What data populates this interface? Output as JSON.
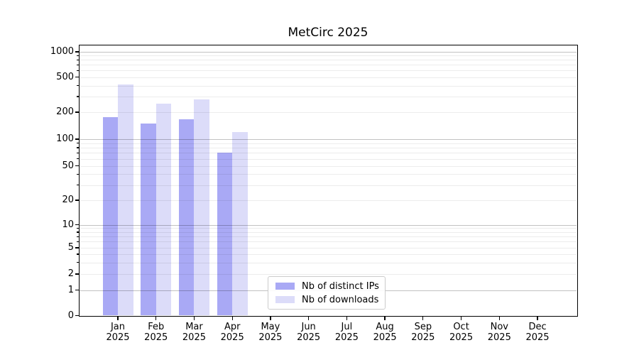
{
  "title": "MetCirc 2025",
  "chart_data": {
    "type": "bar",
    "title": "MetCirc 2025",
    "x_tick_months": [
      "Jan",
      "Feb",
      "Mar",
      "Apr",
      "May",
      "Jun",
      "Jul",
      "Aug",
      "Sep",
      "Oct",
      "Nov",
      "Dec"
    ],
    "x_tick_year": "2025",
    "y_axis": {
      "scale": "symlog",
      "tick_values": [
        0,
        1,
        2,
        5,
        10,
        20,
        50,
        100,
        200,
        500,
        1000
      ],
      "major_grid_values": [
        1,
        10,
        100,
        1000
      ],
      "minor_grid_values": [
        2,
        3,
        4,
        5,
        6,
        7,
        8,
        9,
        20,
        30,
        40,
        50,
        60,
        70,
        80,
        90,
        200,
        300,
        400,
        500,
        600,
        700,
        800,
        900
      ],
      "ylim": [
        0,
        1180
      ],
      "grid": true
    },
    "series": [
      {
        "name": "Nb of distinct IPs",
        "color": "#a9a9f5",
        "values": [
          175,
          150,
          168,
          70,
          null,
          null,
          null,
          null,
          null,
          null,
          null,
          null
        ]
      },
      {
        "name": "Nb of downloads",
        "color": "#dcdcf9",
        "values": [
          410,
          250,
          280,
          120,
          null,
          null,
          null,
          null,
          null,
          null,
          null,
          null
        ]
      }
    ],
    "legend": {
      "position": "lower-center",
      "items": [
        {
          "label": "Nb of distinct IPs",
          "color": "#a9a9f5"
        },
        {
          "label": "Nb of downloads",
          "color": "#dcdcf9"
        }
      ]
    }
  },
  "colors": {
    "bar_distinct_ips": "#a9a9f5",
    "bar_downloads": "#dcdcf9",
    "spine": "#000000",
    "legend_border": "#cccccc"
  }
}
